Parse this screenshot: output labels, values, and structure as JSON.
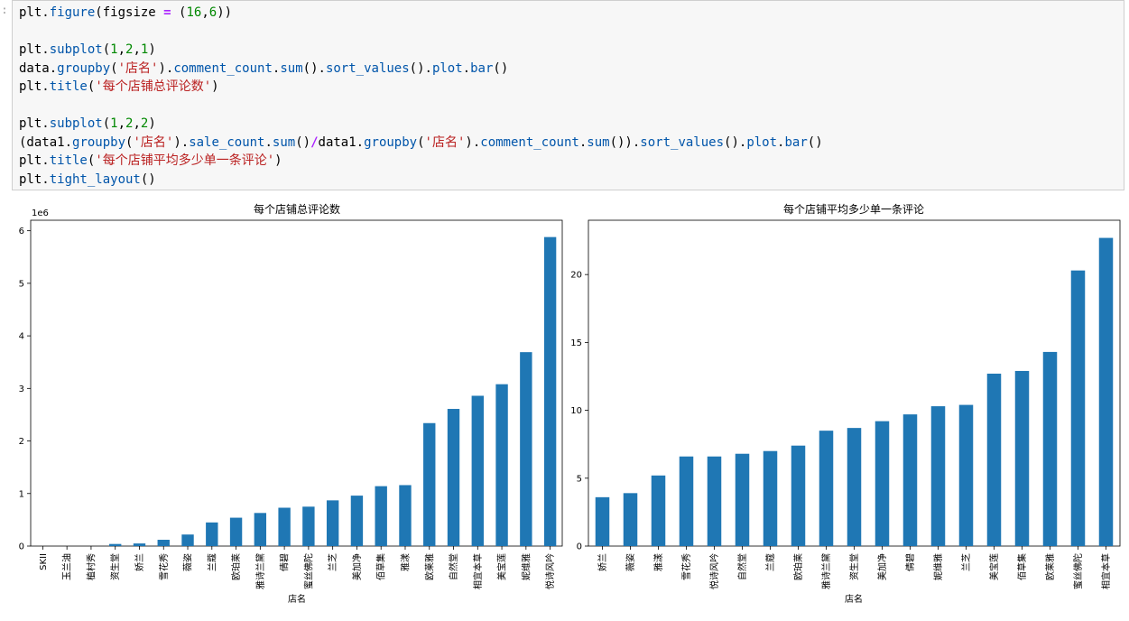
{
  "cell": {
    "prompt": ":",
    "code_lines": [
      [
        {
          "t": "plt."
        },
        {
          "t": "figure",
          "c": "t-attr"
        },
        {
          "t": "(figsize "
        },
        {
          "t": "=",
          "c": "t-op"
        },
        {
          "t": " ("
        },
        {
          "t": "16",
          "c": "t-num"
        },
        {
          "t": ","
        },
        {
          "t": "6",
          "c": "t-num"
        },
        {
          "t": "))"
        }
      ],
      [],
      [
        {
          "t": "plt."
        },
        {
          "t": "subplot",
          "c": "t-attr"
        },
        {
          "t": "("
        },
        {
          "t": "1",
          "c": "t-num"
        },
        {
          "t": ","
        },
        {
          "t": "2",
          "c": "t-num"
        },
        {
          "t": ","
        },
        {
          "t": "1",
          "c": "t-num"
        },
        {
          "t": ")"
        }
      ],
      [
        {
          "t": "data."
        },
        {
          "t": "groupby",
          "c": "t-attr"
        },
        {
          "t": "("
        },
        {
          "t": "'店名'",
          "c": "t-str"
        },
        {
          "t": ")."
        },
        {
          "t": "comment_count",
          "c": "t-attr"
        },
        {
          "t": "."
        },
        {
          "t": "sum",
          "c": "t-attr"
        },
        {
          "t": "()."
        },
        {
          "t": "sort_values",
          "c": "t-attr"
        },
        {
          "t": "()."
        },
        {
          "t": "plot",
          "c": "t-attr"
        },
        {
          "t": "."
        },
        {
          "t": "bar",
          "c": "t-attr"
        },
        {
          "t": "()"
        }
      ],
      [
        {
          "t": "plt."
        },
        {
          "t": "title",
          "c": "t-attr"
        },
        {
          "t": "("
        },
        {
          "t": "'每个店铺总评论数'",
          "c": "t-str"
        },
        {
          "t": ")"
        }
      ],
      [],
      [
        {
          "t": "plt."
        },
        {
          "t": "subplot",
          "c": "t-attr"
        },
        {
          "t": "("
        },
        {
          "t": "1",
          "c": "t-num"
        },
        {
          "t": ","
        },
        {
          "t": "2",
          "c": "t-num"
        },
        {
          "t": ","
        },
        {
          "t": "2",
          "c": "t-num"
        },
        {
          "t": ")"
        }
      ],
      [
        {
          "t": "(data1."
        },
        {
          "t": "groupby",
          "c": "t-attr"
        },
        {
          "t": "("
        },
        {
          "t": "'店名'",
          "c": "t-str"
        },
        {
          "t": ")."
        },
        {
          "t": "sale_count",
          "c": "t-attr"
        },
        {
          "t": "."
        },
        {
          "t": "sum",
          "c": "t-attr"
        },
        {
          "t": "()"
        },
        {
          "t": "/",
          "c": "t-op"
        },
        {
          "t": "data1."
        },
        {
          "t": "groupby",
          "c": "t-attr"
        },
        {
          "t": "("
        },
        {
          "t": "'店名'",
          "c": "t-str"
        },
        {
          "t": ")."
        },
        {
          "t": "comment_count",
          "c": "t-attr"
        },
        {
          "t": "."
        },
        {
          "t": "sum",
          "c": "t-attr"
        },
        {
          "t": "())."
        },
        {
          "t": "sort_values",
          "c": "t-attr"
        },
        {
          "t": "()."
        },
        {
          "t": "plot",
          "c": "t-attr"
        },
        {
          "t": "."
        },
        {
          "t": "bar",
          "c": "t-attr"
        },
        {
          "t": "()"
        }
      ],
      [
        {
          "t": "plt."
        },
        {
          "t": "title",
          "c": "t-attr"
        },
        {
          "t": "("
        },
        {
          "t": "'每个店铺平均多少单一条评论'",
          "c": "t-str"
        },
        {
          "t": ")"
        }
      ],
      [
        {
          "t": "plt."
        },
        {
          "t": "tight_layout",
          "c": "t-attr"
        },
        {
          "t": "()"
        }
      ]
    ]
  },
  "colors": {
    "bar": "#1f77b4",
    "axis": "#000000",
    "text": "#000000"
  },
  "chart_data": [
    {
      "type": "bar",
      "title": "每个店铺总评论数",
      "xlabel": "店名",
      "ylabel": "",
      "scale_label": "1e6",
      "ylim": [
        0,
        6.2
      ],
      "yticks": [
        0,
        1,
        2,
        3,
        4,
        5,
        6
      ],
      "categories": [
        "SKII",
        "玉兰油",
        "植村秀",
        "资生堂",
        "娇兰",
        "雪花秀",
        "薇姿",
        "兰蔻",
        "欧珀莱",
        "雅诗兰黛",
        "倩碧",
        "蜜丝佛陀",
        "兰芝",
        "美加净",
        "佰草集",
        "雅漾",
        "欧莱雅",
        "自然堂",
        "相宜本草",
        "美宝莲",
        "妮维雅",
        "悦诗风吟"
      ],
      "values": [
        0.0,
        0.0,
        0.0,
        0.04,
        0.05,
        0.12,
        0.22,
        0.45,
        0.54,
        0.63,
        0.73,
        0.75,
        0.87,
        0.96,
        1.14,
        1.16,
        2.34,
        2.61,
        2.86,
        3.08,
        3.69,
        5.88
      ]
    },
    {
      "type": "bar",
      "title": "每个店铺平均多少单一条评论",
      "xlabel": "店名",
      "ylabel": "",
      "ylim": [
        0,
        24
      ],
      "yticks": [
        0,
        5,
        10,
        15,
        20
      ],
      "categories": [
        "娇兰",
        "薇姿",
        "雅漾",
        "雪花秀",
        "悦诗风吟",
        "自然堂",
        "兰蔻",
        "欧珀莱",
        "雅诗兰黛",
        "资生堂",
        "美加净",
        "倩碧",
        "妮维雅",
        "兰芝",
        "美宝莲",
        "佰草集",
        "欧莱雅",
        "蜜丝佛陀",
        "相宜本草"
      ],
      "values": [
        3.6,
        3.9,
        5.2,
        6.6,
        6.6,
        6.8,
        7.0,
        7.4,
        8.5,
        8.7,
        9.2,
        9.7,
        10.3,
        10.4,
        12.7,
        12.9,
        14.3,
        20.3,
        22.7
      ]
    }
  ]
}
